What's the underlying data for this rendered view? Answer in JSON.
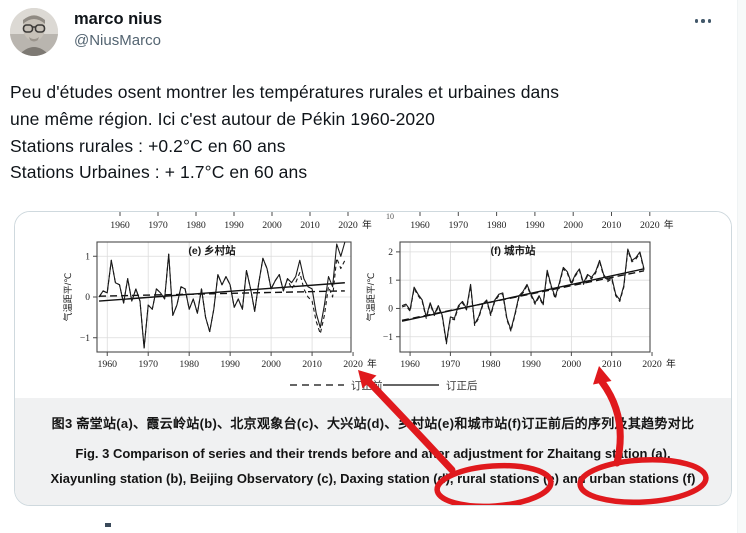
{
  "tweet": {
    "author_name": "marco nius",
    "author_handle": "@NiusMarco",
    "body": "Peu d'études osent montrer les températures rurales et urbaines dans\nune même région. Ici c'est autour de Pékin 1960-2020\nStations rurales : +0.2°C en 60 ans\nStations Urbaines : + 1.7°C en 60 ans"
  },
  "figure": {
    "caption_zh": "图3  斋堂站(a)、霞云岭站(b)、北京观象台(c)、大兴站(d)、乡村站(e)和城市站(f)订正前后的序列及其趋势对比",
    "caption_en_line1": "Fig. 3   Comparison of series and their trends before and after adjustment for Zhaitang station (a),",
    "caption_en_line2": "Xiayunling station (b), Beijing Observatory (c), Daxing station (d), rural stations (e) and urban stations (f)",
    "legend_before": "订正前",
    "legend_after": "订正后",
    "axis_year_unit": "年",
    "cropped_fragment_text": "10"
  },
  "chart_data": [
    {
      "type": "line",
      "title": "(e) 乡村站",
      "ylabel": "气温距平/℃",
      "x_start": 1958,
      "x_end": 2018,
      "x_ticks": [
        1960,
        1970,
        1980,
        1990,
        2000,
        2010,
        2020
      ],
      "y_ticks": [
        -1,
        0,
        1
      ],
      "ylim": [
        -1.35,
        1.35
      ],
      "grid": true,
      "series": [
        {
          "name": "订正后 (after adjustment)",
          "style": "solid",
          "values": [
            0.0,
            0.15,
            0.1,
            0.9,
            0.35,
            0.3,
            -0.15,
            0.45,
            -0.1,
            0.2,
            -0.1,
            -1.25,
            -0.2,
            -0.3,
            0.2,
            0.1,
            -0.05,
            1.05,
            -0.45,
            -0.2,
            0.25,
            0.2,
            -0.3,
            -0.05,
            -0.4,
            0.2,
            -0.5,
            -0.85,
            -0.3,
            0.55,
            0.3,
            0.5,
            0.3,
            -0.25,
            -0.05,
            -0.3,
            0.65,
            0.2,
            -0.35,
            0.35,
            0.95,
            0.7,
            0.2,
            0.4,
            0.55,
            0.15,
            0.45,
            0.35,
            0.5,
            0.9,
            0.45,
            0.25,
            0.2,
            -0.4,
            -0.75,
            -0.2,
            0.5,
            0.25,
            1.3,
            1.0,
            1.35
          ]
        },
        {
          "name": "订正前 (before adjustment)",
          "style": "dashed",
          "values": [
            0.0,
            0.15,
            0.1,
            0.9,
            0.35,
            0.3,
            -0.15,
            0.45,
            -0.1,
            0.2,
            -0.1,
            -1.25,
            -0.2,
            -0.3,
            0.2,
            0.1,
            -0.05,
            1.05,
            -0.45,
            -0.2,
            0.25,
            0.2,
            -0.3,
            -0.05,
            -0.4,
            0.2,
            -0.5,
            -0.85,
            -0.3,
            0.55,
            0.3,
            0.5,
            0.3,
            -0.25,
            -0.05,
            -0.3,
            0.65,
            0.2,
            -0.35,
            0.35,
            0.95,
            0.7,
            0.2,
            0.4,
            0.55,
            0.15,
            0.45,
            0.2,
            0.35,
            0.6,
            0.2,
            0.0,
            -0.1,
            -0.6,
            -0.9,
            -0.45,
            0.25,
            0.0,
            0.95,
            0.7,
            0.9
          ]
        }
      ],
      "trends": [
        {
          "name": "trend after adjustment",
          "style": "solid",
          "endpoints": [
            -0.1,
            0.35
          ]
        },
        {
          "name": "trend before adjustment",
          "style": "dashed",
          "endpoints": [
            0.02,
            0.15
          ]
        }
      ]
    },
    {
      "type": "line",
      "title": "(f) 城市站",
      "ylabel": "气温距平/℃",
      "x_start": 1958,
      "x_end": 2018,
      "x_ticks": [
        1960,
        1970,
        1980,
        1990,
        2000,
        2010,
        2020
      ],
      "y_ticks": [
        -1,
        0,
        1,
        2
      ],
      "ylim": [
        -1.54,
        2.35
      ],
      "grid": true,
      "series": [
        {
          "name": "订正后 (after adjustment)",
          "style": "solid",
          "values": [
            0.1,
            0.15,
            -0.05,
            0.75,
            0.5,
            0.3,
            -0.3,
            0.2,
            -0.2,
            0.1,
            -0.25,
            -1.2,
            -0.3,
            -0.35,
            0.1,
            0.25,
            0.0,
            0.85,
            -0.55,
            -0.3,
            0.15,
            0.3,
            -0.2,
            0.3,
            0.5,
            0.55,
            -0.35,
            -0.75,
            -0.2,
            0.45,
            0.6,
            0.85,
            0.5,
            0.2,
            0.45,
            0.15,
            1.35,
            0.8,
            0.4,
            0.9,
            1.45,
            1.3,
            0.9,
            1.2,
            1.4,
            0.9,
            1.2,
            1.1,
            1.3,
            1.7,
            1.2,
            1.0,
            1.1,
            0.5,
            0.3,
            0.8,
            2.1,
            1.7,
            1.8,
            2.0,
            1.4
          ]
        },
        {
          "name": "订正前 (before adjustment)",
          "style": "dashed",
          "values": [
            0.05,
            0.1,
            -0.1,
            0.7,
            0.45,
            0.25,
            -0.35,
            0.15,
            -0.25,
            0.05,
            -0.3,
            -1.25,
            -0.35,
            -0.4,
            0.05,
            0.2,
            -0.05,
            0.8,
            -0.6,
            -0.35,
            0.1,
            0.25,
            -0.25,
            0.25,
            0.45,
            0.5,
            -0.4,
            -0.8,
            -0.25,
            0.4,
            0.55,
            0.8,
            0.45,
            0.15,
            0.4,
            0.1,
            1.3,
            0.75,
            0.35,
            0.85,
            1.4,
            1.25,
            0.85,
            1.15,
            1.35,
            0.85,
            1.15,
            1.05,
            1.25,
            1.65,
            1.15,
            0.95,
            1.05,
            0.45,
            0.25,
            0.75,
            2.05,
            1.65,
            1.75,
            1.95,
            1.35
          ]
        }
      ],
      "trends": [
        {
          "name": "trend after adjustment",
          "style": "solid",
          "endpoints": [
            -0.45,
            1.4
          ]
        },
        {
          "name": "trend before adjustment",
          "style": "dashed",
          "endpoints": [
            -0.42,
            1.33
          ]
        }
      ]
    }
  ],
  "annotations": {
    "color": "#e0191d",
    "items": [
      {
        "type": "ellipse",
        "target": "rural stations (e) caption text"
      },
      {
        "type": "ellipse",
        "target": "urban stations (f) caption text"
      },
      {
        "type": "arrow",
        "target": "rural chart (e) near 2020"
      },
      {
        "type": "arrow",
        "target": "urban chart (f) near 2010"
      }
    ]
  },
  "colors": {
    "text_primary": "#0f1419",
    "text_secondary": "#536471",
    "card_border": "#cfd9de",
    "caption_bg": "#f0f1f2",
    "annotation_red": "#e0191d"
  }
}
